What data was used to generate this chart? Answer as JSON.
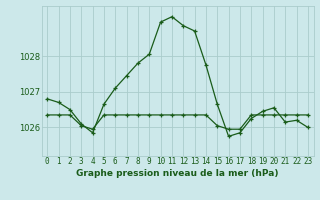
{
  "title": "Graphe pression niveau de la mer (hPa)",
  "background_color": "#cce8ea",
  "grid_color": "#aacccc",
  "line_color": "#1a5c1a",
  "x_labels": [
    "0",
    "1",
    "2",
    "3",
    "4",
    "5",
    "6",
    "7",
    "8",
    "9",
    "10",
    "11",
    "12",
    "13",
    "14",
    "15",
    "16",
    "17",
    "18",
    "19",
    "20",
    "21",
    "22",
    "23"
  ],
  "y_ticks": [
    1026,
    1027,
    1028
  ],
  "ylim": [
    1025.2,
    1029.4
  ],
  "xlim": [
    -0.5,
    23.5
  ],
  "series1": [
    1026.8,
    1026.7,
    1026.5,
    1026.1,
    1025.85,
    1026.65,
    1027.1,
    1027.45,
    1027.8,
    1028.05,
    1028.95,
    1029.1,
    1028.85,
    1028.7,
    1027.75,
    1026.65,
    1025.75,
    1025.85,
    1026.25,
    1026.45,
    1026.55,
    1026.15,
    1026.2,
    1026.0
  ],
  "series2": [
    1026.35,
    1026.35,
    1026.35,
    1026.05,
    1025.95,
    1026.35,
    1026.35,
    1026.35,
    1026.35,
    1026.35,
    1026.35,
    1026.35,
    1026.35,
    1026.35,
    1026.35,
    1026.05,
    1025.95,
    1025.95,
    1026.35,
    1026.35,
    1026.35,
    1026.35,
    1026.35,
    1026.35
  ],
  "ylabel_fontsize": 6,
  "xlabel_fontsize": 5.5,
  "title_fontsize": 6.5
}
